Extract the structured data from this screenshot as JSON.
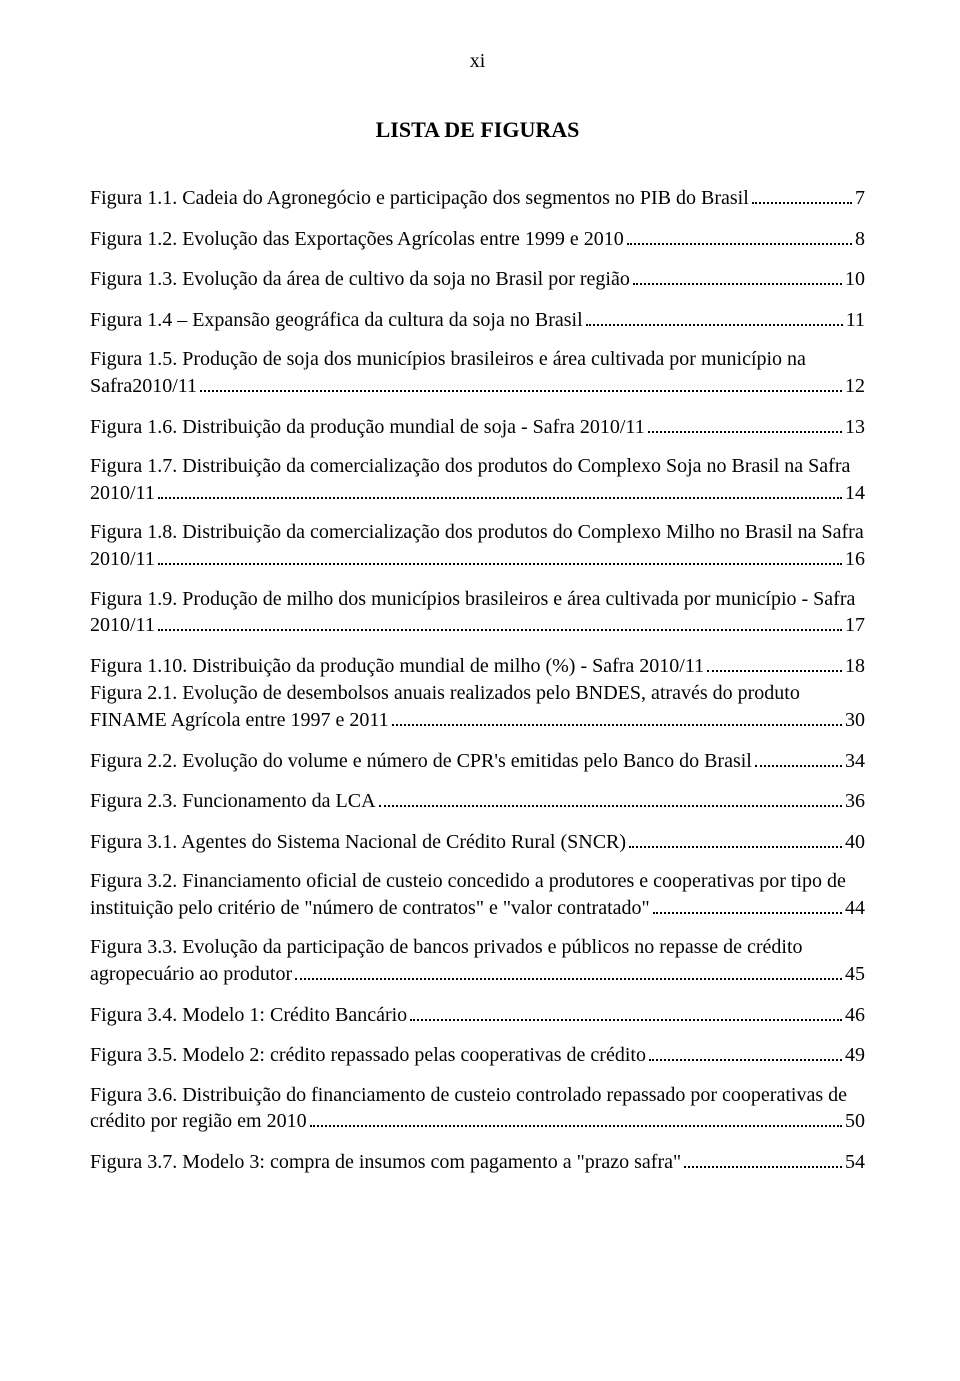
{
  "page": {
    "number": "xi",
    "title": "LISTA DE FIGURAS"
  },
  "entries": [
    {
      "pre": "",
      "last": "Figura 1.1. Cadeia do Agronegócio e participação dos segmentos no PIB do Brasil",
      "num": "7",
      "tight": false
    },
    {
      "pre": "",
      "last": "Figura 1.2. Evolução das Exportações Agrícolas entre 1999 e 2010",
      "num": "8",
      "tight": false
    },
    {
      "pre": "",
      "last": "Figura 1.3. Evolução da área de cultivo da soja no Brasil por região",
      "num": "10",
      "tight": false
    },
    {
      "pre": "",
      "last": "Figura 1.4 – Expansão geográfica da cultura da soja no Brasil",
      "num": "11",
      "tight": false
    },
    {
      "pre": "Figura 1.5. Produção de soja dos municípios brasileiros e área cultivada por município na",
      "last": "Safra2010/11",
      "num": "12",
      "tight": false
    },
    {
      "pre": "",
      "last": "Figura 1.6. Distribuição da produção mundial de soja - Safra 2010/11",
      "num": "13",
      "tight": false
    },
    {
      "pre": "Figura 1.7. Distribuição da comercialização dos produtos do Complexo Soja no Brasil na Safra",
      "last": "2010/11",
      "num": "14",
      "tight": false
    },
    {
      "pre": "Figura 1.8. Distribuição da comercialização dos produtos do Complexo Milho no Brasil na Safra",
      "last": "2010/11",
      "num": "16",
      "tight": false
    },
    {
      "pre": "Figura 1.9. Produção de milho dos municípios brasileiros e área cultivada por município - Safra",
      "last": "2010/11",
      "num": "17",
      "tight": false
    },
    {
      "pre": "",
      "last": "Figura 1.10. Distribuição da produção mundial de milho (%) - Safra 2010/11",
      "num": "18",
      "tight": true
    },
    {
      "pre": "Figura 2.1. Evolução de desembolsos anuais realizados pelo BNDES, através do produto",
      "last": "FINAME Agrícola entre 1997 e 2011",
      "num": "30",
      "tight": false
    },
    {
      "pre": "",
      "last": "Figura 2.2. Evolução do volume e número de CPR's emitidas pelo Banco do Brasil ",
      "num": "34",
      "tight": false
    },
    {
      "pre": "",
      "last": "Figura 2.3. Funcionamento da LCA",
      "num": "36",
      "tight": false
    },
    {
      "pre": "",
      "last": "Figura 3.1. Agentes do Sistema Nacional de Crédito Rural (SNCR)",
      "num": "40",
      "tight": false
    },
    {
      "pre": "Figura 3.2. Financiamento oficial de custeio concedido a produtores e cooperativas por tipo de",
      "last": "instituição pelo critério de \"número de contratos\" e \"valor contratado\"",
      "num": "44",
      "tight": false
    },
    {
      "pre": "Figura 3.3. Evolução da participação de bancos privados e públicos no repasse de crédito",
      "last": "agropecuário ao produtor ",
      "num": "45",
      "tight": false
    },
    {
      "pre": "",
      "last": "Figura 3.4. Modelo 1: Crédito Bancário ",
      "num": "46",
      "tight": false
    },
    {
      "pre": "",
      "last": "Figura 3.5. Modelo 2: crédito repassado pelas cooperativas de crédito ",
      "num": "49",
      "tight": false
    },
    {
      "pre": "Figura 3.6. Distribuição do financiamento de custeio controlado repassado por cooperativas de",
      "last": "crédito por região  em 2010",
      "num": "50",
      "tight": false
    },
    {
      "pre": "",
      "last": "Figura 3.7. Modelo 3: compra de insumos com pagamento a \"prazo safra\" ",
      "num": "54",
      "tight": false
    }
  ]
}
